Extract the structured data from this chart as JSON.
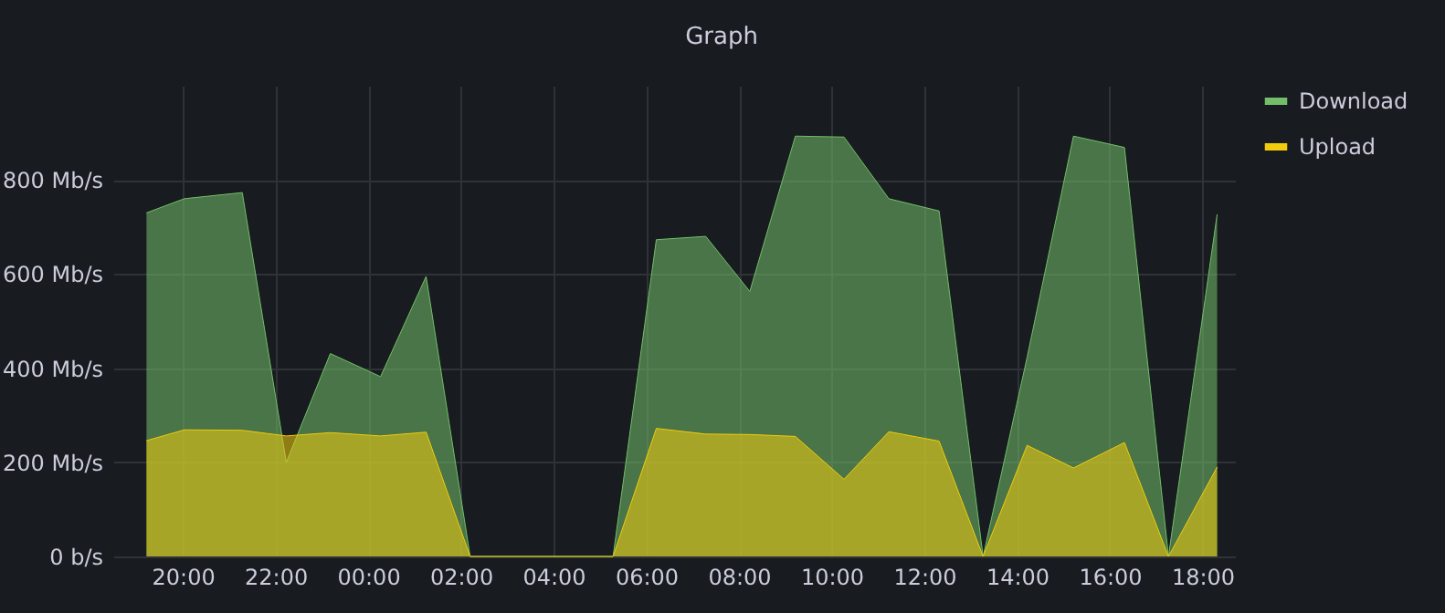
{
  "chart_data": {
    "type": "area",
    "title": "Graph",
    "x": [
      "--01-01T19:13",
      "--01-01T20:02",
      "--01-01T21:17",
      "--01-01T22:14",
      "--01-01T23:11",
      "--01-02T00:16",
      "--01-02T01:15",
      "--01-02T02:12",
      "--01-02T05:17",
      "--01-02T06:13",
      "--01-02T07:17",
      "--01-02T08:14",
      "--01-02T09:13",
      "--01-02T10:16",
      "--01-02T11:14",
      "--01-02T12:19",
      "--01-02T13:16",
      "--01-02T14:13",
      "--01-02T15:13",
      "--01-02T16:19",
      "--01-02T17:16",
      "--01-02T18:19"
    ],
    "series": [
      {
        "name": "Download",
        "color": "#73bf69",
        "values": [
          730,
          760,
          773,
          200,
          431,
          382,
          595,
          0,
          0,
          673,
          680,
          563,
          893,
          891,
          760,
          734,
          0,
          423,
          893,
          869,
          0,
          727
        ]
      },
      {
        "name": "Upload",
        "color": "#f2cc0c",
        "values": [
          246,
          269,
          268,
          256,
          263,
          256,
          264,
          0,
          0,
          272,
          260,
          259,
          255,
          164,
          265,
          245,
          0,
          236,
          188,
          242,
          0,
          190
        ]
      }
    ],
    "xlim": [
      "--01-01T18:30",
      "--01-02T18:42"
    ],
    "xticks": [
      {
        "value": "--01-01T20:00",
        "label": "20:00"
      },
      {
        "value": "--01-01T22:00",
        "label": "22:00"
      },
      {
        "value": "--01-02T00:00",
        "label": "00:00"
      },
      {
        "value": "--01-02T02:00",
        "label": "02:00"
      },
      {
        "value": "--01-02T04:00",
        "label": "04:00"
      },
      {
        "value": "--01-02T06:00",
        "label": "06:00"
      },
      {
        "value": "--01-02T08:00",
        "label": "08:00"
      },
      {
        "value": "--01-02T10:00",
        "label": "10:00"
      },
      {
        "value": "--01-02T12:00",
        "label": "12:00"
      },
      {
        "value": "--01-02T14:00",
        "label": "14:00"
      },
      {
        "value": "--01-02T16:00",
        "label": "16:00"
      },
      {
        "value": "--01-02T18:00",
        "label": "18:00"
      }
    ],
    "ylim": [
      0,
      1000
    ],
    "yticks": [
      {
        "value": 0,
        "label": "0 b/s"
      },
      {
        "value": 200,
        "label": "200 Mb/s"
      },
      {
        "value": 400,
        "label": "400 Mb/s"
      },
      {
        "value": 600,
        "label": "600 Mb/s"
      },
      {
        "value": 800,
        "label": "800 Mb/s"
      }
    ],
    "grid": true,
    "legend": "top right"
  }
}
